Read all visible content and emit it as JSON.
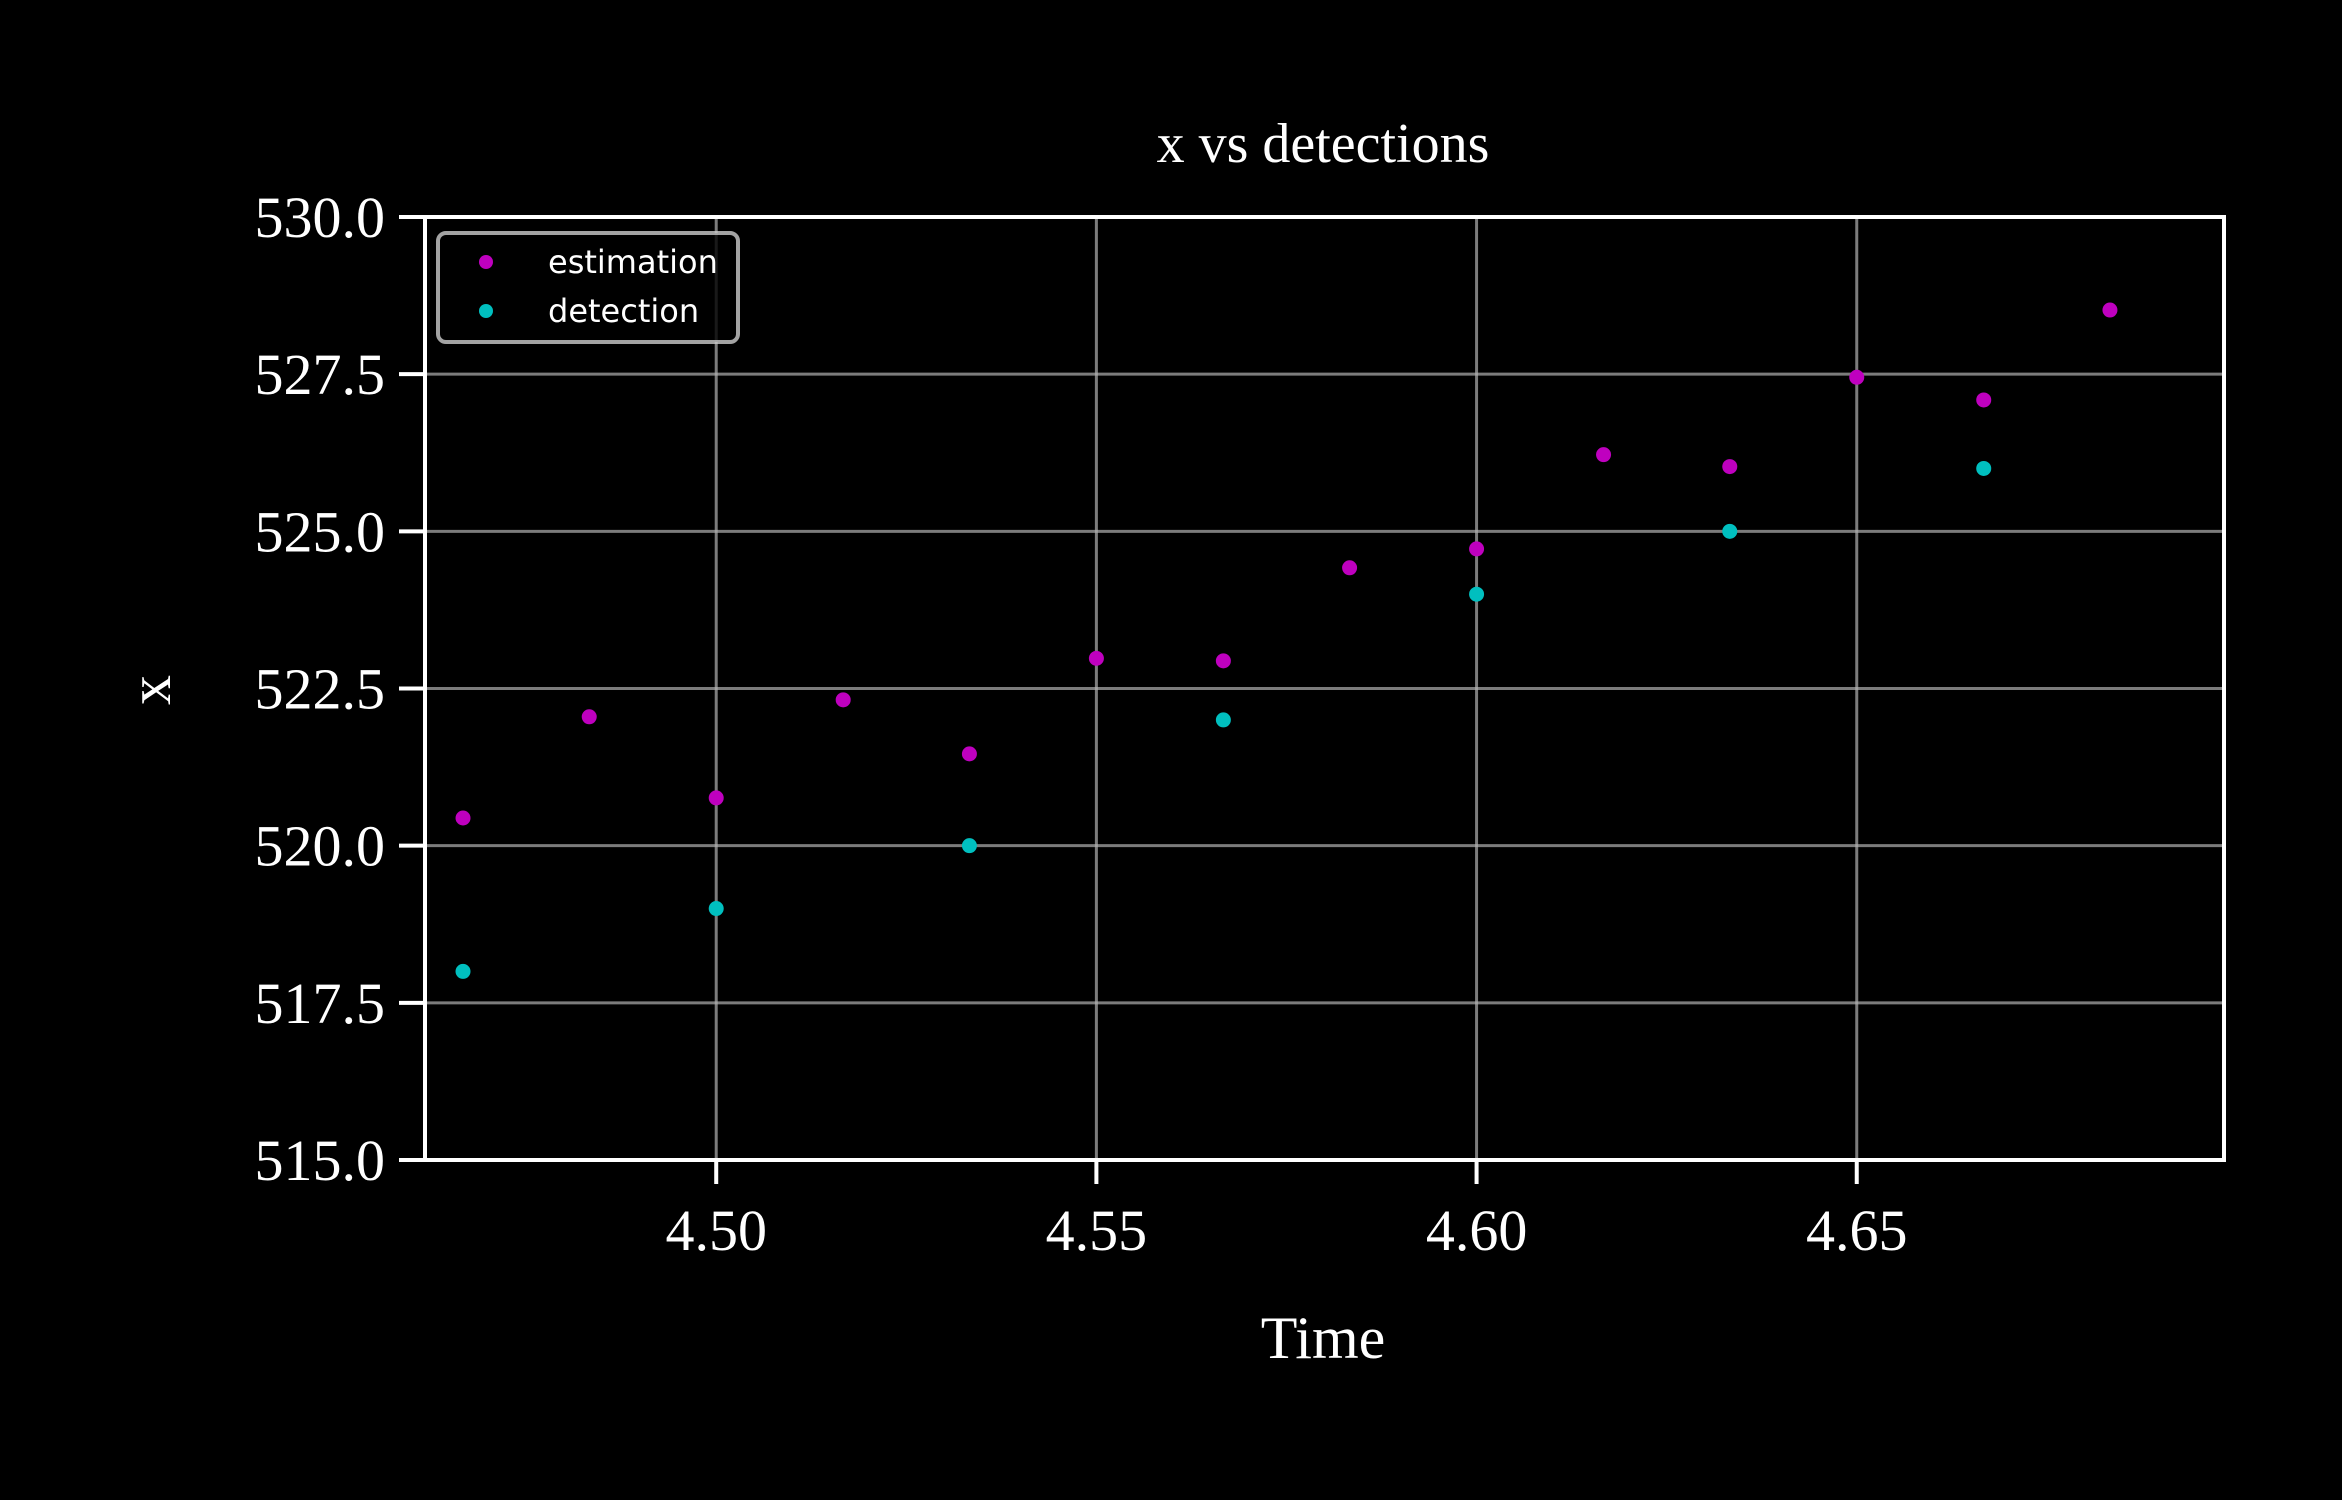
{
  "chart_data": {
    "type": "scatter",
    "title": "x vs detections",
    "xlabel": "Time",
    "ylabel": "x",
    "xlim": [
      4.4617,
      4.6983
    ],
    "ylim": [
      515.0,
      530.0
    ],
    "xticks": [
      "4.50",
      "4.55",
      "4.60",
      "4.65"
    ],
    "xtick_values": [
      4.5,
      4.55,
      4.6,
      4.65
    ],
    "yticks": [
      "515.0",
      "517.5",
      "520.0",
      "522.5",
      "525.0",
      "527.5",
      "530.0"
    ],
    "ytick_values": [
      515.0,
      517.5,
      520.0,
      522.5,
      525.0,
      527.5,
      530.0
    ],
    "grid": true,
    "legend_position": "upper-left",
    "series": [
      {
        "name": "estimation",
        "color": "#bf00bf",
        "x": [
          4.4667,
          4.4833,
          4.5,
          4.5167,
          4.5333,
          4.55,
          4.5667,
          4.5833,
          4.6,
          4.6167,
          4.6333,
          4.65,
          4.6667,
          4.6833
        ],
        "y": [
          520.44,
          522.05,
          520.76,
          522.32,
          521.46,
          522.98,
          522.94,
          524.42,
          524.72,
          526.22,
          526.03,
          527.45,
          527.09,
          528.52
        ]
      },
      {
        "name": "detection",
        "color": "#00bfbf",
        "x": [
          4.4667,
          4.5,
          4.5333,
          4.5667,
          4.6,
          4.6333,
          4.6667
        ],
        "y": [
          518.0,
          519.0,
          520.0,
          522.0,
          524.0,
          525.0,
          526.0
        ]
      }
    ]
  }
}
